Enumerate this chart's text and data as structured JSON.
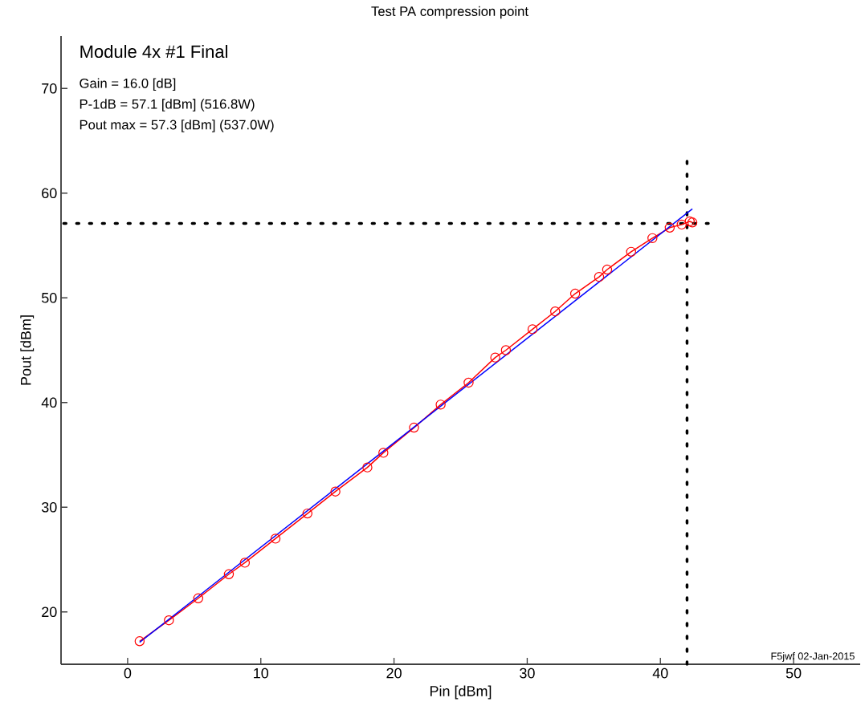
{
  "chart_data": {
    "type": "line",
    "title": "Test PA compression point",
    "xlabel": "Pin [dBm]",
    "ylabel": "Pout [dBm]",
    "xlim": [
      -5,
      55
    ],
    "ylim": [
      15,
      75
    ],
    "xticks": [
      0,
      10,
      20,
      30,
      40,
      50
    ],
    "yticks": [
      20,
      30,
      40,
      50,
      60,
      70
    ],
    "grid": false,
    "series": [
      {
        "color": "#ff0000",
        "marker": "circle",
        "x": [
          0.9,
          3.1,
          5.3,
          7.6,
          8.8,
          11.1,
          13.5,
          15.6,
          18.0,
          19.2,
          21.5,
          23.5,
          25.6,
          27.6,
          28.4,
          30.4,
          32.1,
          33.6,
          35.4,
          36.0,
          37.8,
          39.4,
          40.7,
          41.6,
          42.2,
          42.4
        ],
        "values": [
          17.2,
          19.2,
          21.3,
          23.6,
          24.7,
          27.0,
          29.4,
          31.5,
          33.8,
          35.2,
          37.6,
          39.8,
          41.9,
          44.3,
          45.0,
          47.0,
          48.7,
          50.4,
          52.0,
          52.7,
          54.4,
          55.7,
          56.7,
          57.0,
          57.3,
          57.2
        ]
      },
      {
        "color": "#0000ff",
        "marker": "none",
        "x": [
          0.9,
          42.4
        ],
        "values": [
          17.1,
          58.5
        ]
      }
    ],
    "ref_lines": [
      {
        "axis": "x",
        "value": 42.0,
        "color": "#000000",
        "line_style": "dotted"
      },
      {
        "axis": "y",
        "value": 57.1,
        "color": "#000000",
        "line_style": "dotted"
      }
    ],
    "annotations": [
      "Module 4x #1 Final",
      "Gain = 16.0 [dB]",
      "P-1dB = 57.1 [dBm] (516.8W)",
      "Pout max = 57.3 [dBm] (537.0W)",
      "F5jwf 02-Jan-2015"
    ]
  }
}
